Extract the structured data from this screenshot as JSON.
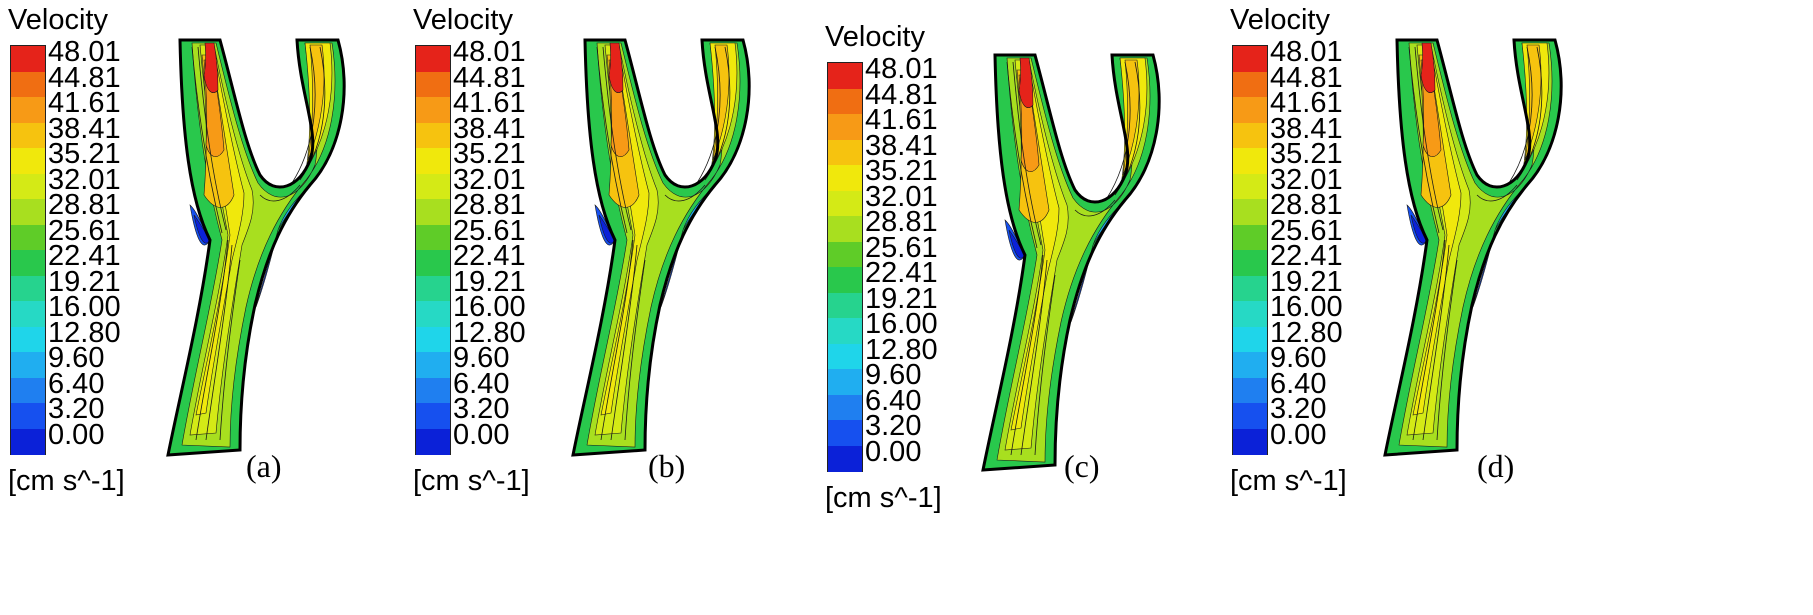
{
  "chart_data": [
    {
      "type": "heatmap",
      "panel_label": "(a)",
      "legend_title": "Velocity",
      "unit": "[cm s^-1]",
      "levels": [
        "48.01",
        "44.81",
        "41.61",
        "38.41",
        "35.21",
        "32.01",
        "28.81",
        "25.61",
        "22.41",
        "19.21",
        "16.00",
        "12.80",
        "9.60",
        "6.40",
        "3.20",
        "0.00"
      ]
    },
    {
      "type": "heatmap",
      "panel_label": "(b)",
      "legend_title": "Velocity",
      "unit": "[cm s^-1]",
      "levels": [
        "48.01",
        "44.81",
        "41.61",
        "38.41",
        "35.21",
        "32.01",
        "28.81",
        "25.61",
        "22.41",
        "19.21",
        "16.00",
        "12.80",
        "9.60",
        "6.40",
        "3.20",
        "0.00"
      ]
    },
    {
      "type": "heatmap",
      "panel_label": "(c)",
      "legend_title": "Velocity",
      "unit": "[cm s^-1]",
      "levels": [
        "48.01",
        "44.81",
        "41.61",
        "38.41",
        "35.21",
        "32.01",
        "28.81",
        "25.61",
        "22.41",
        "19.21",
        "16.00",
        "12.80",
        "9.60",
        "6.40",
        "3.20",
        "0.00"
      ]
    },
    {
      "type": "heatmap",
      "panel_label": "(d)",
      "legend_title": "Velocity",
      "unit": "[cm s^-1]",
      "levels": [
        "48.01",
        "44.81",
        "41.61",
        "38.41",
        "35.21",
        "32.01",
        "28.81",
        "25.61",
        "22.41",
        "19.21",
        "16.00",
        "12.80",
        "9.60",
        "6.40",
        "3.20",
        "0.00"
      ]
    }
  ],
  "colormap": [
    "#e5231a",
    "#f06e12",
    "#f79a16",
    "#f6c30f",
    "#f0e80c",
    "#d4ea16",
    "#a8df1f",
    "#5fcc28",
    "#29c84c",
    "#26d38e",
    "#26d9c5",
    "#1fd5ea",
    "#20aef0",
    "#1f7ff0",
    "#1650ef",
    "#0b21d8"
  ]
}
